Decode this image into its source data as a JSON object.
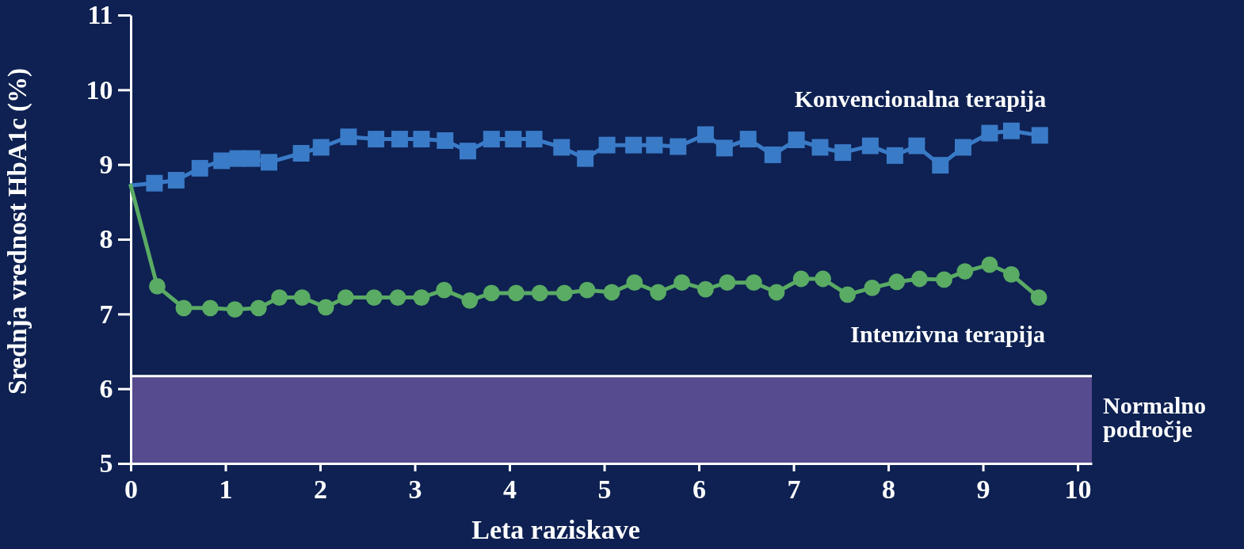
{
  "chart_data": {
    "type": "line",
    "xlabel": "Leta raziskave",
    "ylabel": "Srednja vrednost HbA1c (%)",
    "xlim": [
      0,
      10.15
    ],
    "xticks": [
      0,
      1,
      2,
      3,
      4,
      5,
      6,
      7,
      8,
      9,
      10
    ],
    "ylim": [
      5,
      11
    ],
    "yticks": [
      5,
      6,
      7,
      8,
      9,
      10,
      11
    ],
    "grid": false,
    "ref_lines": [
      {
        "axis": "y",
        "value": 6.17,
        "color": "#ffffff"
      }
    ],
    "series": [
      {
        "name": "Konvencionalna terapija",
        "color": "#3a7bc8",
        "marker": "square",
        "x": [
          0,
          0.25,
          0.48,
          0.73,
          0.96,
          1.13,
          1.28,
          1.46,
          1.8,
          2.01,
          2.3,
          2.59,
          2.84,
          3.07,
          3.32,
          3.56,
          3.81,
          4.04,
          4.26,
          4.55,
          4.8,
          5.03,
          5.31,
          5.53,
          5.78,
          6.07,
          6.27,
          6.52,
          6.78,
          7.03,
          7.28,
          7.52,
          7.81,
          8.07,
          8.3,
          8.55,
          8.79,
          9.07,
          9.3,
          9.6
        ],
        "values": [
          8.72,
          8.75,
          8.79,
          8.95,
          9.05,
          9.08,
          9.08,
          9.03,
          9.15,
          9.23,
          9.37,
          9.34,
          9.34,
          9.34,
          9.32,
          9.18,
          9.34,
          9.34,
          9.34,
          9.23,
          9.08,
          9.26,
          9.26,
          9.26,
          9.24,
          9.4,
          9.22,
          9.34,
          9.13,
          9.33,
          9.23,
          9.16,
          9.25,
          9.12,
          9.25,
          8.99,
          9.23,
          9.42,
          9.45,
          9.39
        ]
      },
      {
        "name": "Intenzivna terapija",
        "color": "#5aab64",
        "marker": "circle",
        "x": [
          0,
          0.28,
          0.56,
          0.84,
          1.1,
          1.35,
          1.57,
          1.81,
          2.06,
          2.27,
          2.57,
          2.82,
          3.07,
          3.31,
          3.58,
          3.81,
          4.07,
          4.32,
          4.58,
          4.82,
          5.08,
          5.32,
          5.57,
          5.82,
          6.07,
          6.3,
          6.58,
          6.82,
          7.08,
          7.31,
          7.57,
          7.83,
          8.09,
          8.33,
          8.59,
          8.81,
          9.07,
          9.3,
          9.59
        ],
        "values": [
          8.72,
          7.37,
          7.08,
          7.08,
          7.06,
          7.08,
          7.22,
          7.22,
          7.09,
          7.22,
          7.22,
          7.22,
          7.22,
          7.32,
          7.18,
          7.28,
          7.28,
          7.28,
          7.28,
          7.32,
          7.29,
          7.42,
          7.29,
          7.42,
          7.33,
          7.42,
          7.42,
          7.29,
          7.47,
          7.47,
          7.26,
          7.35,
          7.43,
          7.47,
          7.46,
          7.57,
          7.66,
          7.53,
          7.22
        ]
      }
    ],
    "bands": [
      {
        "axis": "y",
        "from": 5,
        "to": 6.17,
        "label": "Normalno področje",
        "color": "#554b8e"
      }
    ]
  }
}
